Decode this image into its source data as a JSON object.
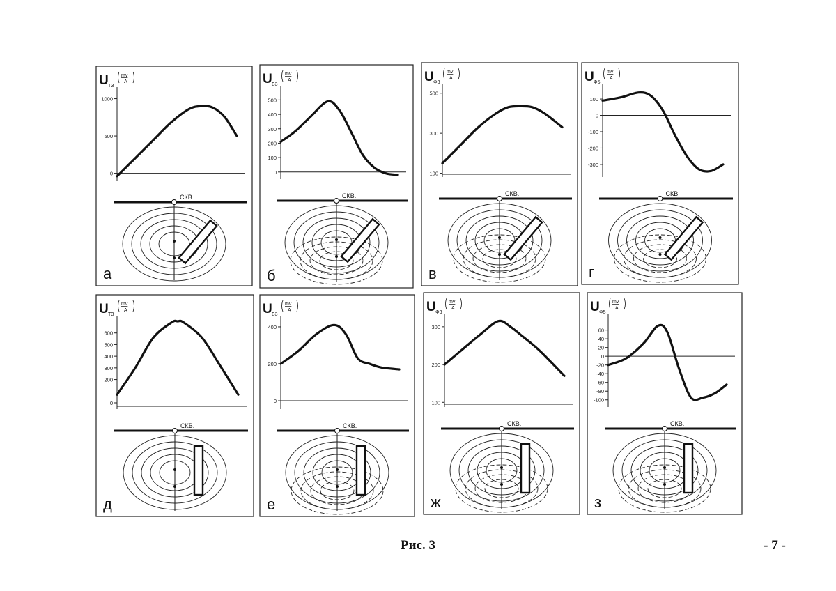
{
  "caption": "Рис. 3",
  "page_number": "- 7 -",
  "well_label": "СКВ.",
  "chart_data": [
    {
      "type": "line",
      "panel": "а",
      "ylabel": "U",
      "ylabel_sub": "ТЗ",
      "unit_top": "mv",
      "unit_bottom": "A",
      "yticks": [
        0,
        500,
        1000
      ],
      "ylim": [
        -60,
        1080
      ],
      "zero_line": true,
      "x": [
        0,
        0.15,
        0.3,
        0.45,
        0.6,
        0.7,
        0.8,
        0.9,
        1.0
      ],
      "values": [
        -40,
        200,
        440,
        680,
        860,
        900,
        880,
        750,
        500
      ]
    },
    {
      "type": "line",
      "panel": "б",
      "ylabel": "U",
      "ylabel_sub": "Б3",
      "unit_top": "mv",
      "unit_bottom": "A",
      "yticks": [
        0,
        100,
        200,
        300,
        400,
        500
      ],
      "ylim": [
        -30,
        560
      ],
      "zero_line": true,
      "x": [
        0,
        0.12,
        0.25,
        0.4,
        0.5,
        0.6,
        0.7,
        0.8,
        0.9,
        1.0
      ],
      "values": [
        210,
        280,
        380,
        490,
        430,
        280,
        120,
        30,
        -10,
        -20
      ]
    },
    {
      "type": "line",
      "panel": "в",
      "ylabel": "U",
      "ylabel_sub": "Φ3",
      "unit_top": "mv",
      "unit_bottom": "A",
      "yticks": [
        100,
        300,
        500
      ],
      "ylim": [
        95,
        520
      ],
      "zero_line": false,
      "x": [
        0,
        0.15,
        0.3,
        0.45,
        0.55,
        0.65,
        0.75,
        0.85,
        1.0
      ],
      "values": [
        150,
        240,
        330,
        400,
        430,
        435,
        430,
        400,
        330
      ]
    },
    {
      "type": "line",
      "panel": "г",
      "ylabel": "U",
      "ylabel_sub": "Φ5",
      "unit_top": "mv",
      "unit_bottom": "A",
      "yticks": [
        100,
        0,
        -100,
        -200,
        -300
      ],
      "ylim": [
        -360,
        160
      ],
      "zero_line": true,
      "x": [
        0,
        0.15,
        0.3,
        0.4,
        0.5,
        0.6,
        0.7,
        0.8,
        0.9,
        1.0
      ],
      "values": [
        90,
        110,
        140,
        120,
        30,
        -120,
        -250,
        -330,
        -340,
        -300
      ]
    },
    {
      "type": "line",
      "panel": "д",
      "ylabel": "U",
      "ylabel_sub": "ТЗ",
      "unit_top": "mv",
      "unit_bottom": "A",
      "yticks": [
        0,
        200,
        300,
        400,
        500,
        600
      ],
      "ylim": [
        -30,
        700
      ],
      "zero_line": false,
      "x": [
        0,
        0.15,
        0.3,
        0.45,
        0.5,
        0.55,
        0.7,
        0.85,
        1.0
      ],
      "values": [
        70,
        300,
        560,
        690,
        700,
        690,
        560,
        320,
        70
      ]
    },
    {
      "type": "line",
      "panel": "е",
      "ylabel": "U",
      "ylabel_sub": "Б3",
      "unit_top": "mv",
      "unit_bottom": "A",
      "yticks": [
        0,
        200,
        400
      ],
      "ylim": [
        -30,
        430
      ],
      "zero_line": true,
      "x": [
        0,
        0.15,
        0.3,
        0.45,
        0.55,
        0.65,
        0.75,
        0.85,
        1.0
      ],
      "values": [
        200,
        270,
        360,
        410,
        360,
        230,
        200,
        180,
        170
      ]
    },
    {
      "type": "line",
      "panel": "ж",
      "ylabel": "U",
      "ylabel_sub": "Φ3",
      "unit_top": "mv",
      "unit_bottom": "A",
      "yticks": [
        100,
        200,
        300
      ],
      "ylim": [
        95,
        320
      ],
      "zero_line": false,
      "x": [
        0,
        0.15,
        0.3,
        0.45,
        0.55,
        0.65,
        0.8,
        1.0
      ],
      "values": [
        200,
        240,
        280,
        315,
        300,
        275,
        235,
        170
      ]
    },
    {
      "type": "line",
      "panel": "з",
      "ylabel": "U",
      "ylabel_sub": "Φ5",
      "unit_top": "mv",
      "unit_bottom": "A",
      "yticks": [
        60,
        40,
        20,
        0,
        -20,
        -40,
        -60,
        -80,
        -100
      ],
      "ylim": [
        -110,
        85
      ],
      "zero_line": true,
      "x": [
        0,
        0.15,
        0.3,
        0.42,
        0.5,
        0.6,
        0.7,
        0.8,
        0.9,
        1.0
      ],
      "values": [
        -20,
        -5,
        30,
        70,
        55,
        -30,
        -95,
        -95,
        -85,
        -65
      ]
    }
  ]
}
